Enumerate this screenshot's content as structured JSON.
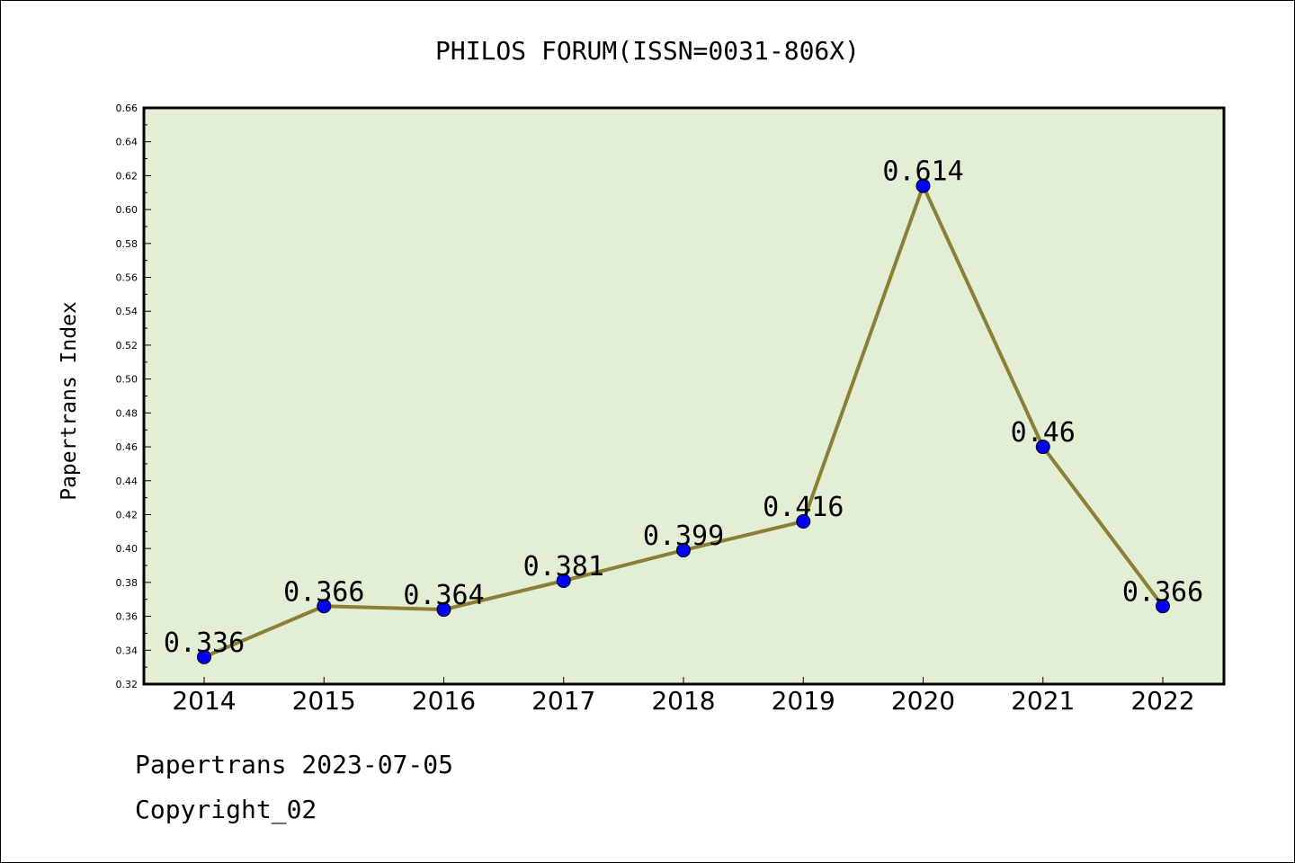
{
  "chart_data": {
    "type": "line",
    "title": "PHILOS FORUM(ISSN=0031-806X)",
    "xlabel": "",
    "ylabel": "Papertrans Index",
    "categories": [
      "2014",
      "2015",
      "2016",
      "2017",
      "2018",
      "2019",
      "2020",
      "2021",
      "2022"
    ],
    "values": [
      0.336,
      0.366,
      0.364,
      0.381,
      0.399,
      0.416,
      0.614,
      0.46,
      0.366
    ],
    "data_labels": [
      "0.336",
      "0.366",
      "0.364",
      "0.381",
      "0.399",
      "0.416",
      "0.614",
      "0.46",
      "0.366"
    ],
    "ylim": [
      0.32,
      0.66
    ],
    "yticks": [
      "0.32",
      "0.34",
      "0.36",
      "0.38",
      "0.40",
      "0.42",
      "0.44",
      "0.46",
      "0.48",
      "0.50",
      "0.52",
      "0.54",
      "0.56",
      "0.58",
      "0.60",
      "0.62",
      "0.64",
      "0.66"
    ],
    "grid": false,
    "colors": {
      "plot_background": "#e2efd5",
      "line": "#8b7f36",
      "marker": "#0000ff"
    }
  },
  "footer": {
    "line1": "Papertrans 2023-07-05",
    "line2": "Copyright_02"
  }
}
